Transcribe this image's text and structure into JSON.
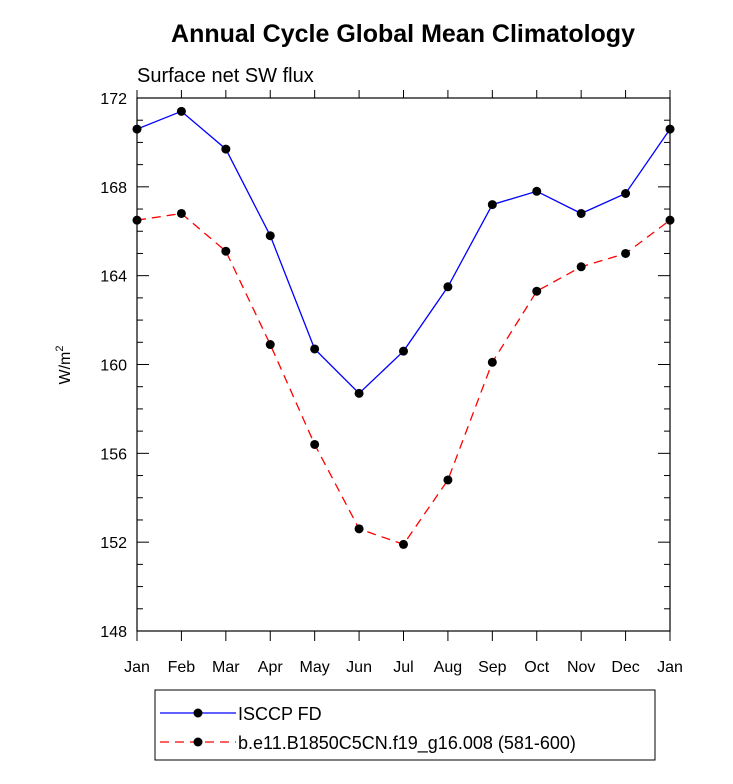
{
  "chart_data": {
    "type": "line",
    "title": "Annual Cycle Global Mean Climatology",
    "subtitle": "Surface net SW flux",
    "xlabel": "",
    "ylabel": "W/m",
    "ylabel_superscript": "2",
    "categories": [
      "Jan",
      "Feb",
      "Mar",
      "Apr",
      "May",
      "Jun",
      "Jul",
      "Aug",
      "Sep",
      "Oct",
      "Nov",
      "Dec",
      "Jan"
    ],
    "ylim": [
      148,
      172
    ],
    "yticks": [
      148,
      152,
      156,
      160,
      164,
      168,
      172
    ],
    "series": [
      {
        "name": "ISCCP FD",
        "color": "#0000ff",
        "dash": "solid",
        "values": [
          170.6,
          171.4,
          169.7,
          165.8,
          160.7,
          158.7,
          160.6,
          163.5,
          167.2,
          167.8,
          166.8,
          167.7,
          170.6
        ]
      },
      {
        "name": "b.e11.B1850C5CN.f19_g16.008 (581-600)",
        "color": "#ff0000",
        "dash": "dashed",
        "values": [
          166.5,
          166.8,
          165.1,
          160.9,
          156.4,
          152.6,
          151.9,
          154.8,
          160.1,
          163.3,
          164.4,
          165.0,
          166.5
        ]
      }
    ],
    "legend_position": "bottom"
  }
}
